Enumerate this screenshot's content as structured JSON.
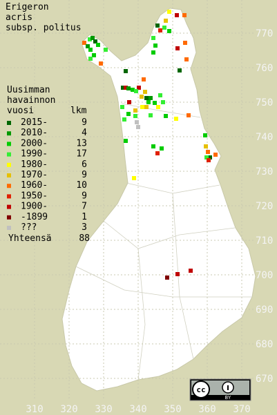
{
  "title": [
    "Erigeron",
    "acris",
    "subsp. politus"
  ],
  "legend": {
    "heading": [
      "Uusimman",
      "havainnon"
    ],
    "col_year": "vuosi",
    "col_count": "lkm",
    "items": [
      {
        "label": "2015-",
        "count": 9,
        "color": "#006600"
      },
      {
        "label": "2010-",
        "count": 4,
        "color": "#009900"
      },
      {
        "label": "2000-",
        "count": 13,
        "color": "#00cc00"
      },
      {
        "label": "1990-",
        "count": 17,
        "color": "#33ee33"
      },
      {
        "label": "1980-",
        "count": 6,
        "color": "#ffff00"
      },
      {
        "label": "1970-",
        "count": 9,
        "color": "#e6c000"
      },
      {
        "label": "1960-",
        "count": 10,
        "color": "#ff6a00"
      },
      {
        "label": "1950-",
        "count": 9,
        "color": "#e02000"
      },
      {
        "label": "1900-",
        "count": 7,
        "color": "#c00000"
      },
      {
        "label": "-1899",
        "count": 1,
        "color": "#800000"
      },
      {
        "label": "???",
        "count": 3,
        "color": "#c0c0c0"
      }
    ],
    "total_label": "Yhteensä",
    "total": 88
  },
  "grid": {
    "xticks": [
      310,
      320,
      330,
      340,
      350,
      360,
      370
    ],
    "yticks": [
      770,
      760,
      750,
      740,
      730,
      720,
      710,
      700,
      690,
      680,
      670
    ]
  },
  "license": "BY"
}
